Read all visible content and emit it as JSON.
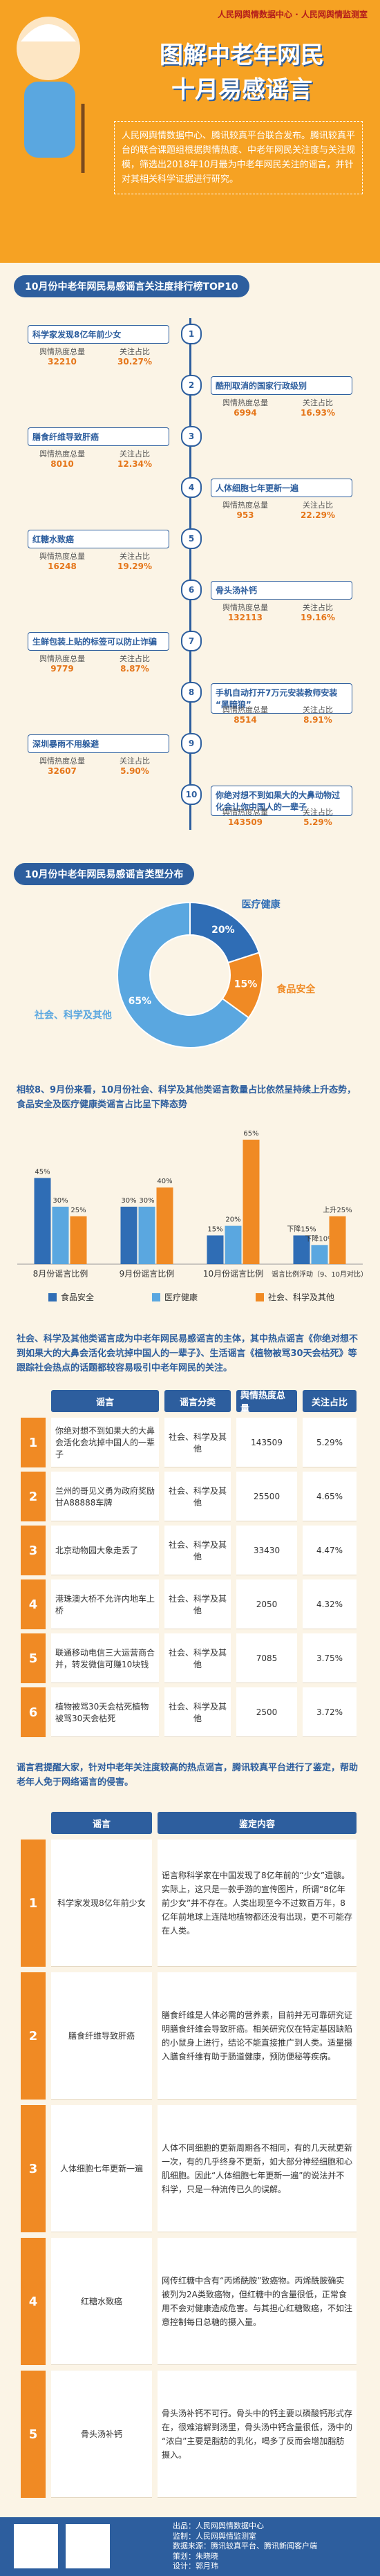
{
  "header": {
    "logos": [
      "人民网舆情数据中心",
      "人民网舆情监测室"
    ],
    "title_lines": [
      "图解中老年网民",
      "十月易感谣言"
    ],
    "intro": "人民网舆情数据中心、腾讯较真平台联合发布。腾讯较真平台的联合课题组根据舆情热度、中老年网民关注度与关注规模，筛选出2018年10月最为中老年网民关注的谣言，并针对其相关科学证据进行研究。"
  },
  "ranking": {
    "title": "10月份中老年网民易感谣言关注度排行榜TOP10",
    "labels": {
      "heat": "舆情热度总量",
      "ratio": "关注占比"
    },
    "items": [
      {
        "rank": "1",
        "name": "科学家发现8亿年前少女",
        "heat": "32210",
        "ratio": "30.27%"
      },
      {
        "rank": "2",
        "name": "酷刑取消的国家行政级别",
        "heat": "6994",
        "ratio": "16.93%"
      },
      {
        "rank": "3",
        "name": "膳食纤维导致肝癌",
        "heat": "8010",
        "ratio": "12.34%"
      },
      {
        "rank": "4",
        "name": "人体细胞七年更新一遍",
        "heat": "953",
        "ratio": "22.29%"
      },
      {
        "rank": "5",
        "name": "红糖水致癌",
        "heat": "16248",
        "ratio": "19.29%"
      },
      {
        "rank": "6",
        "name": "骨头汤补钙",
        "heat": "132113",
        "ratio": "19.16%"
      },
      {
        "rank": "7",
        "name": "生鲜包装上贴的标签可以防止诈骗",
        "heat": "9779",
        "ratio": "8.87%"
      },
      {
        "rank": "8",
        "name": "手机自动打开7万元安装教师安装“黑暗狼”",
        "heat": "8514",
        "ratio": "8.91%"
      },
      {
        "rank": "9",
        "name": "深圳暴雨不用躲避",
        "heat": "32607",
        "ratio": "5.90%"
      },
      {
        "rank": "10",
        "name": "你绝对想不到如果大的大鼻动物过化会让你中国人的一辈子",
        "heat": "143509",
        "ratio": "5.29%"
      }
    ]
  },
  "chart_data": [
    {
      "type": "pie",
      "title": "10月份中老年网民易感谣言类型分布",
      "categories": [
        "医疗健康",
        "食品安全",
        "社会、科学及其他"
      ],
      "values": [
        20,
        15,
        65
      ],
      "value_labels": [
        "20%",
        "15%",
        "65%"
      ],
      "colors": [
        "#2f6db5",
        "#f08a24",
        "#5aa7e0"
      ],
      "donut": true
    },
    {
      "type": "bar",
      "title": "相较8、9月份来看，10月份社会、科学及其他类谣言数量占比依然呈持续上升态势，食品安全及医疗健康类谣言占比呈下降态势",
      "categories": [
        "8月份谣言比例",
        "9月份谣言比例",
        "10月份谣言比例",
        "谣言比例浮动（9、10月对比）"
      ],
      "series": [
        {
          "name": "食品安全",
          "color": "#2f6db5",
          "values": [
            45,
            30,
            15,
            15
          ],
          "value_labels": [
            "45%",
            "30%",
            "15%",
            "下降15%"
          ]
        },
        {
          "name": "医疗健康",
          "color": "#5aa7e0",
          "values": [
            30,
            30,
            20,
            10
          ],
          "value_labels": [
            "30%",
            "30%",
            "20%",
            "下降10%"
          ]
        },
        {
          "name": "社会、科学及其他",
          "color": "#f08a24",
          "values": [
            25,
            40,
            65,
            25
          ],
          "value_labels": [
            "25%",
            "40%",
            "65%",
            "上升25%"
          ]
        }
      ],
      "legend": "bottom"
    }
  ],
  "social_table": {
    "intro": "社会、科学及其他类谣言成为中老年网民易感谣言的主体，其中热点谣言《你绝对想不到如果大的大鼻会活化会坑掉中国人的一辈子》、生活谣言《植物被骂30天会枯死》等跟踪社会热点的话题都较容易吸引中老年网民的关注。",
    "headers": [
      "谣言",
      "谣言分类",
      "舆情热度总量",
      "关注占比"
    ],
    "rows": [
      [
        "1",
        "你绝对想不到如果大的大鼻会活化会坑掉中国人的一辈子",
        "社会、科学及其他",
        "143509",
        "5.29%"
      ],
      [
        "2",
        "兰州的哥见义勇为政府奖励甘A88888车牌",
        "社会、科学及其他",
        "25500",
        "4.65%"
      ],
      [
        "3",
        "北京动物园大象走丢了",
        "社会、科学及其他",
        "33430",
        "4.47%"
      ],
      [
        "4",
        "港珠澳大桥不允许内地车上桥",
        "社会、科学及其他",
        "2050",
        "4.32%"
      ],
      [
        "5",
        "联通移动电信三大运营商合并，转发微信可赚10块钱",
        "社会、科学及其他",
        "7085",
        "3.75%"
      ],
      [
        "6",
        "植物被骂30天会枯死植物被骂30天会枯死",
        "社会、科学及其他",
        "2500",
        "3.72%"
      ]
    ]
  },
  "verify_table": {
    "intro": "谣言君提醒大家，针对中老年关注度较高的热点谣言，腾讯较真平台进行了鉴定，帮助老年人免于网络谣言的侵害。",
    "headers": [
      "谣言",
      "鉴定内容"
    ],
    "rows": [
      [
        "1",
        "科学家发现8亿年前少女",
        "谣言称科学家在中国发现了8亿年前的“少女”遗骸。实际上，这只是一款手游的宣传图片，所谓“8亿年前少女”并不存在。人类出现至今不过数百万年，8亿年前地球上连陆地植物都还没有出现，更不可能存在人类。"
      ],
      [
        "2",
        "膳食纤维导致肝癌",
        "膳食纤维是人体必需的营养素，目前并无可靠研究证明膳食纤维会导致肝癌。相关研究仅在特定基因缺陷的小鼠身上进行，结论不能直接推广到人类。适量摄入膳食纤维有助于肠道健康，预防便秘等疾病。"
      ],
      [
        "3",
        "人体细胞七年更新一遍",
        "人体不同细胞的更新周期各不相同，有的几天就更新一次，有的几乎终身不更新，如大部分神经细胞和心肌细胞。因此“人体细胞七年更新一遍”的说法并不科学，只是一种流传已久的误解。"
      ],
      [
        "4",
        "红糖水致癌",
        "网传红糖中含有“丙烯酰胺”致癌物。丙烯酰胺确实被列为2A类致癌物，但红糖中的含量很低，正常食用不会对健康造成危害。与其担心红糖致癌，不如注意控制每日总糖的摄入量。"
      ],
      [
        "5",
        "骨头汤补钙",
        "骨头汤补钙不可行。骨头中的钙主要以磷酸钙形式存在，很难溶解到汤里，骨头汤中钙含量很低，汤中的“浓白”主要是脂肪的乳化，喝多了反而会增加脂肪摄入。"
      ]
    ]
  },
  "footer": {
    "credits": [
      "出品：人民网舆情数据中心",
      "监制：人民网舆情监测室",
      "数据来源：腾讯较真平台、腾讯新闻客户端",
      "策划：朱晓晓",
      "设计：郭月玮"
    ]
  }
}
